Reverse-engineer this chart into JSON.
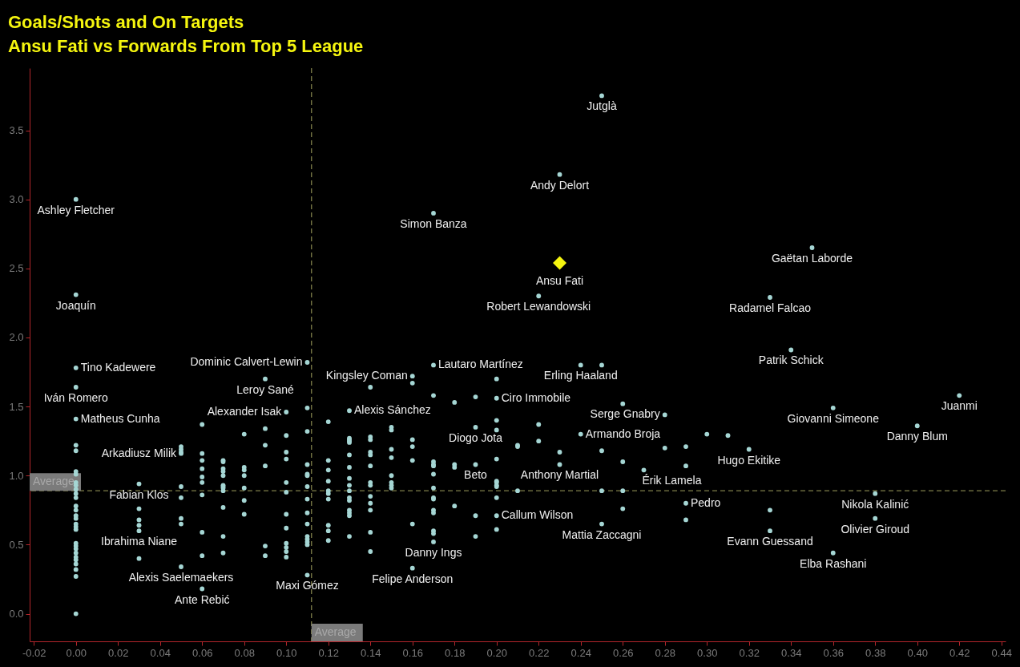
{
  "chart_data": {
    "type": "scatter",
    "title": "Goals/Shots and On Targets",
    "subtitle": "Ansu Fati vs Forwards From Top 5 League",
    "xlim": [
      -0.022,
      0.442
    ],
    "ylim": [
      -0.2,
      3.95
    ],
    "xticks": [
      -0.02,
      {
        "value": 0,
        "label": "0.00"
      },
      0.02,
      0.04,
      0.06,
      0.08,
      {
        "value": 0.1,
        "label": "0.10"
      },
      0.12,
      0.14,
      0.16,
      0.18,
      {
        "value": 0.2,
        "label": "0.20"
      },
      0.22,
      0.24,
      0.26,
      0.28,
      {
        "value": 0.3,
        "label": "0.30"
      },
      0.32,
      0.34,
      0.36,
      0.38,
      {
        "value": 0.4,
        "label": "0.40"
      },
      0.42,
      0.44
    ],
    "yticks": [
      {
        "value": 0,
        "label": "0.0"
      },
      0.5,
      {
        "value": 1,
        "label": "1.0"
      },
      1.5,
      {
        "value": 2,
        "label": "2.0"
      },
      2.5,
      {
        "value": 3,
        "label": "3.0"
      },
      3.5
    ],
    "grid": false,
    "series": [
      {
        "color": "#a5d6d4",
        "marker": "circle",
        "x": [
          0,
          0,
          0,
          0,
          0,
          0,
          0,
          0,
          0,
          0,
          0,
          0,
          0,
          0,
          0,
          0,
          0,
          0,
          0,
          0,
          0,
          0,
          0,
          0,
          0,
          0,
          0,
          0,
          0,
          0,
          0,
          0.03,
          0.03,
          0.03,
          0.03,
          0.03,
          0.03,
          0.05,
          0.05,
          0.05,
          0.05,
          0.05,
          0.05,
          0.05,
          0.05,
          0.05,
          0.06,
          0.06,
          0.06,
          0.06,
          0.06,
          0.06,
          0.06,
          0.06,
          0.06,
          0.06,
          0.07,
          0.07,
          0.07,
          0.07,
          0.07,
          0.07,
          0.07,
          0.07,
          0.07,
          0.07,
          0.07,
          0.07,
          0.08,
          0.08,
          0.08,
          0.08,
          0.08,
          0.08,
          0.08,
          0.09,
          0.09,
          0.09,
          0.09,
          0.09,
          0.09,
          0.1,
          0.1,
          0.1,
          0.1,
          0.1,
          0.1,
          0.1,
          0.1,
          0.1,
          0.1,
          0.1,
          0.1,
          0.11,
          0.11,
          0.11,
          0.11,
          0.11,
          0.11,
          0.11,
          0.11,
          0.11,
          0.11,
          0.11,
          0.11,
          0.11,
          0.11,
          0.11,
          0.12,
          0.12,
          0.12,
          0.12,
          0.12,
          0.12,
          0.12,
          0.12,
          0.12,
          0.12,
          0.13,
          0.13,
          0.13,
          0.13,
          0.13,
          0.13,
          0.13,
          0.13,
          0.13,
          0.13,
          0.13,
          0.13,
          0.13,
          0.13,
          0.13,
          0.13,
          0.14,
          0.14,
          0.14,
          0.14,
          0.14,
          0.14,
          0.14,
          0.14,
          0.14,
          0.14,
          0.14,
          0.14,
          0.14,
          0.15,
          0.15,
          0.15,
          0.15,
          0.15,
          0.15,
          0.15,
          0.15,
          0.16,
          0.16,
          0.16,
          0.16,
          0.16,
          0.16,
          0.16,
          0.17,
          0.17,
          0.17,
          0.17,
          0.17,
          0.17,
          0.17,
          0.17,
          0.17,
          0.17,
          0.17,
          0.17,
          0.17,
          0.17,
          0.17,
          0.18,
          0.18,
          0.18,
          0.18,
          0.19,
          0.19,
          0.19,
          0.19,
          0.19,
          0.2,
          0.2,
          0.2,
          0.2,
          0.2,
          0.2,
          0.2,
          0.2,
          0.2,
          0.2,
          0.2,
          0.2,
          0.21,
          0.21,
          0.21,
          0.22,
          0.22,
          0.22,
          0.23,
          0.23,
          0.23,
          0.24,
          0.24,
          0.25,
          0.25,
          0.25,
          0.25,
          0.25,
          0.26,
          0.26,
          0.26,
          0.26,
          0.27,
          0.28,
          0.28,
          0.29,
          0.29,
          0.29,
          0.29,
          0.3,
          0.31,
          0.32,
          0.33,
          0.33,
          0.33,
          0.34,
          0.35,
          0.36,
          0.36,
          0.38,
          0.38,
          0.4,
          0.42
        ],
        "values": [
          3.0,
          2.31,
          1.78,
          1.64,
          1.41,
          1.22,
          1.18,
          1.03,
          1.01,
          0.95,
          0.93,
          0.9,
          0.87,
          0.84,
          0.78,
          0.75,
          0.71,
          0.69,
          0.65,
          0.63,
          0.61,
          0.51,
          0.49,
          0.47,
          0.44,
          0.41,
          0.39,
          0.36,
          0.32,
          0.27,
          0,
          0.94,
          0.76,
          0.68,
          0.64,
          0.6,
          0.4,
          1.21,
          1.19,
          1.17,
          1.16,
          0.92,
          0.84,
          0.69,
          0.65,
          0.34,
          1.37,
          1.16,
          1.11,
          1.05,
          0.99,
          0.95,
          0.86,
          0.59,
          0.42,
          0.18,
          1.11,
          1.1,
          1.05,
          1.03,
          1.0,
          0.93,
          0.92,
          0.91,
          0.89,
          0.77,
          0.56,
          0.44,
          1.3,
          1.06,
          1.04,
          1.0,
          0.91,
          0.82,
          0.72,
          1.7,
          1.34,
          1.22,
          1.07,
          0.49,
          0.42,
          1.46,
          1.29,
          1.17,
          1.12,
          0.95,
          0.88,
          0.72,
          0.62,
          0.51,
          0.48,
          0.45,
          0.41,
          1.82,
          1.49,
          1.32,
          1.08,
          1.01,
          1.0,
          0.92,
          0.83,
          0.73,
          0.65,
          0.56,
          0.54,
          0.52,
          0.5,
          0.28,
          1.39,
          1.11,
          1.04,
          0.96,
          0.89,
          0.87,
          0.83,
          0.64,
          0.6,
          0.53,
          1.47,
          1.27,
          1.26,
          1.25,
          1.24,
          1.15,
          1.06,
          0.98,
          0.93,
          0.89,
          0.84,
          0.82,
          0.75,
          0.73,
          0.71,
          0.56,
          1.64,
          1.28,
          1.26,
          1.17,
          1.15,
          1.07,
          0.95,
          0.93,
          0.85,
          0.8,
          0.75,
          0.59,
          0.45,
          1.35,
          1.33,
          1.19,
          1.13,
          1.0,
          0.95,
          0.93,
          0.91,
          1.72,
          1.67,
          1.26,
          1.21,
          1.11,
          0.65,
          0.33,
          2.9,
          1.8,
          1.58,
          1.1,
          1.08,
          1.07,
          1.01,
          0.91,
          0.84,
          0.83,
          0.75,
          0.73,
          0.6,
          0.58,
          0.52,
          1.53,
          1.08,
          1.06,
          0.78,
          1.57,
          1.35,
          1.08,
          0.71,
          0.56,
          1.7,
          1.56,
          1.4,
          1.33,
          1.12,
          0.96,
          0.95,
          0.93,
          0.92,
          0.84,
          0.71,
          0.61,
          1.22,
          1.21,
          0.89,
          2.3,
          1.37,
          1.25,
          3.18,
          1.17,
          1.08,
          1.8,
          1.3,
          3.75,
          1.8,
          1.18,
          0.89,
          0.65,
          1.52,
          1.1,
          0.89,
          0.76,
          1.04,
          1.44,
          1.2,
          1.21,
          1.07,
          0.8,
          0.68,
          1.3,
          1.29,
          1.19,
          2.29,
          0.75,
          0.6,
          1.91,
          2.65,
          1.49,
          0.44,
          0.87,
          0.69,
          1.36,
          1.58
        ]
      },
      {
        "name": "Ansu Fati",
        "color": "#f5f50f",
        "marker": "diamond",
        "x": [
          0.23
        ],
        "values": [
          2.54
        ]
      }
    ],
    "ref_lines": [
      {
        "axis": "x",
        "value": 0.112,
        "label": "Average",
        "color": "#7f7f4a",
        "line_style": "dashed"
      },
      {
        "axis": "y",
        "value": 0.89,
        "label": "Average",
        "color": "#7f7f4a",
        "line_style": "dashed"
      }
    ],
    "annotations": [
      {
        "text": "Ashley Fletcher",
        "x": 0,
        "y": 3.0
      },
      {
        "text": "Joaquín",
        "x": 0,
        "y": 2.31
      },
      {
        "text": "Tino Kadewere",
        "x": 0,
        "y": 1.78
      },
      {
        "text": "Iván Romero",
        "x": 0,
        "y": 1.64
      },
      {
        "text": "Matheus Cunha",
        "x": 0,
        "y": 1.41
      },
      {
        "text": "Arkadiusz Milik",
        "x": 0.05,
        "y": 1.16
      },
      {
        "text": "Fabian Klos",
        "x": 0.03,
        "y": 0.94
      },
      {
        "text": "Ibrahima Niane",
        "x": 0.03,
        "y": 0.6
      },
      {
        "text": "Alexis Saelemaekers",
        "x": 0.05,
        "y": 0.34
      },
      {
        "text": "Ante Rebić",
        "x": 0.06,
        "y": 0.18
      },
      {
        "text": "Dominic Calvert-Lewin",
        "x": 0.11,
        "y": 1.82
      },
      {
        "text": "Leroy Sané",
        "x": 0.09,
        "y": 1.7
      },
      {
        "text": "Alexander Isak",
        "x": 0.1,
        "y": 1.46
      },
      {
        "text": "Maxi Gómez",
        "x": 0.11,
        "y": 0.28
      },
      {
        "text": "Kingsley Coman",
        "x": 0.16,
        "y": 1.72
      },
      {
        "text": "Alexis Sánchez",
        "x": 0.13,
        "y": 1.47
      },
      {
        "text": "Lautaro Martínez",
        "x": 0.17,
        "y": 1.8
      },
      {
        "text": "Erling Haaland",
        "x": 0.24,
        "y": 1.8
      },
      {
        "text": "Ciro Immobile",
        "x": 0.2,
        "y": 1.56
      },
      {
        "text": "Diogo Jota",
        "x": 0.19,
        "y": 1.35
      },
      {
        "text": "Beto",
        "x": 0.19,
        "y": 1.08
      },
      {
        "text": "Anthony Martial",
        "x": 0.23,
        "y": 1.08
      },
      {
        "text": "Callum Wilson",
        "x": 0.2,
        "y": 0.71
      },
      {
        "text": "Danny Ings",
        "x": 0.17,
        "y": 0.52
      },
      {
        "text": "Felipe Anderson",
        "x": 0.16,
        "y": 0.33
      },
      {
        "text": "Mattia Zaccagni",
        "x": 0.25,
        "y": 0.65
      },
      {
        "text": "Serge Gnabry",
        "x": 0.28,
        "y": 1.44
      },
      {
        "text": "Armando Broja",
        "x": 0.24,
        "y": 1.3
      },
      {
        "text": "Érik Lamela",
        "x": 0.27,
        "y": 1.04
      },
      {
        "text": "Hugo Ekitike",
        "x": 0.32,
        "y": 1.19
      },
      {
        "text": "Pedro",
        "x": 0.29,
        "y": 0.8
      },
      {
        "text": "Evann Guessand",
        "x": 0.33,
        "y": 0.6
      },
      {
        "text": "Patrik Schick",
        "x": 0.34,
        "y": 1.91
      },
      {
        "text": "Giovanni Simeone",
        "x": 0.36,
        "y": 1.49
      },
      {
        "text": "Juanmi",
        "x": 0.42,
        "y": 1.58
      },
      {
        "text": "Danny Blum",
        "x": 0.4,
        "y": 1.36
      },
      {
        "text": "Nikola Kalinić",
        "x": 0.38,
        "y": 0.87
      },
      {
        "text": "Olivier Giroud",
        "x": 0.38,
        "y": 0.69
      },
      {
        "text": "Elba Rashani",
        "x": 0.36,
        "y": 0.44
      },
      {
        "text": "Gaëtan Laborde",
        "x": 0.35,
        "y": 2.65
      },
      {
        "text": "Radamel Falcao",
        "x": 0.33,
        "y": 2.29
      },
      {
        "text": "Simon Banza",
        "x": 0.17,
        "y": 2.9
      },
      {
        "text": "Andy Delort",
        "x": 0.23,
        "y": 3.18
      },
      {
        "text": "Jutglà",
        "x": 0.25,
        "y": 3.75
      },
      {
        "text": "Robert Lewandowski",
        "x": 0.22,
        "y": 2.3
      }
    ]
  }
}
